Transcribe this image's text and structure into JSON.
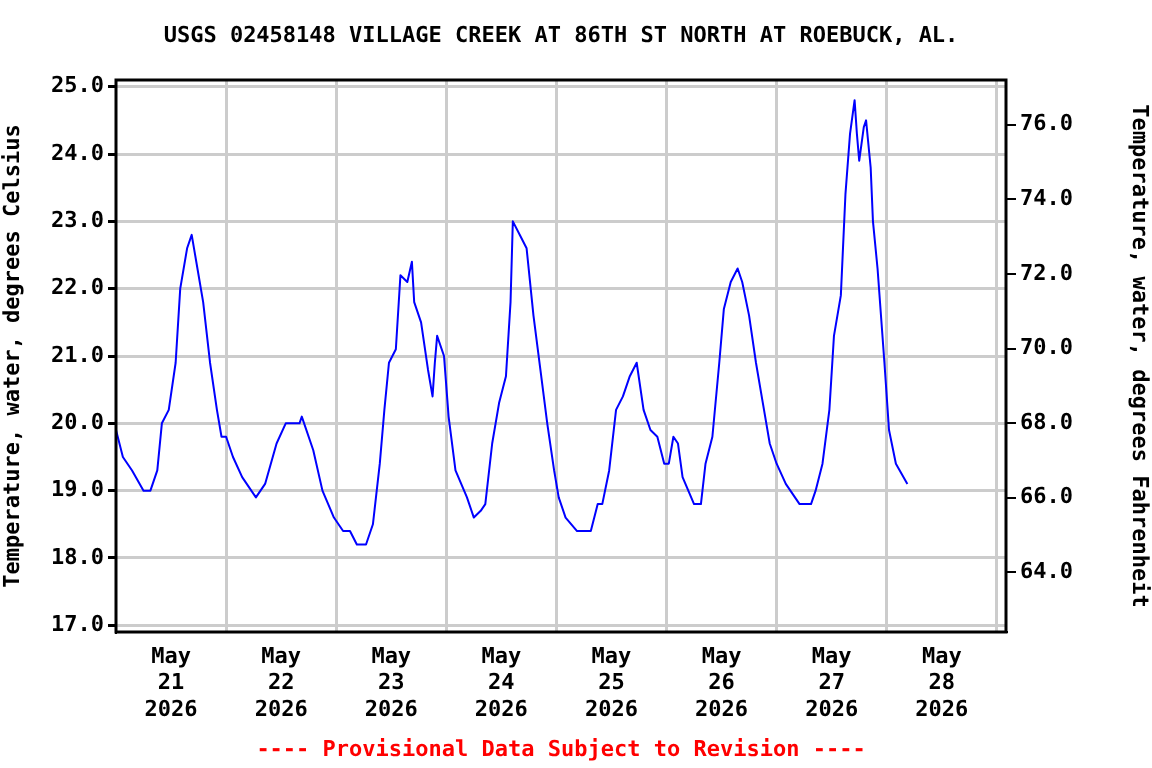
{
  "chart_data": {
    "type": "line",
    "title": "USGS 02458148 VILLAGE CREEK AT 86TH ST NORTH AT ROEBUCK, AL.",
    "ylabel": "Temperature, water, degrees Celsius",
    "y2label": "Temperature, water, degrees Fahrenheit",
    "annotations": [
      "---- Provisional Data Subject to Revision ----"
    ],
    "x": [
      "2026-05-21T00:00",
      "2026-05-21T01:30",
      "2026-05-21T03:30",
      "2026-05-21T06:00",
      "2026-05-21T07:30",
      "2026-05-21T09:00",
      "2026-05-21T10:00",
      "2026-05-21T11:30",
      "2026-05-21T13:00",
      "2026-05-21T14:00",
      "2026-05-21T15:30",
      "2026-05-21T16:30",
      "2026-05-21T17:30",
      "2026-05-21T19:00",
      "2026-05-21T20:30",
      "2026-05-21T22:00",
      "2026-05-21T23:00",
      "2026-05-22T00:00",
      "2026-05-22T01:30",
      "2026-05-22T03:30",
      "2026-05-22T06:30",
      "2026-05-22T08:30",
      "2026-05-22T11:00",
      "2026-05-22T13:00",
      "2026-05-22T16:00",
      "2026-05-22T16:30",
      "2026-05-22T19:00",
      "2026-05-22T21:00",
      "2026-05-22T23:30",
      "2026-05-23T01:30",
      "2026-05-23T03:00",
      "2026-05-23T04:30",
      "2026-05-23T06:30",
      "2026-05-23T08:00",
      "2026-05-23T09:30",
      "2026-05-23T10:30",
      "2026-05-23T11:30",
      "2026-05-23T13:00",
      "2026-05-23T14:00",
      "2026-05-23T15:30",
      "2026-05-23T16:30",
      "2026-05-23T17:00",
      "2026-05-23T18:30",
      "2026-05-23T20:00",
      "2026-05-23T21:00",
      "2026-05-23T21:30",
      "2026-05-23T22:00",
      "2026-05-23T23:30",
      "2026-05-24T00:30",
      "2026-05-24T02:00",
      "2026-05-24T04:30",
      "2026-05-24T06:00",
      "2026-05-24T07:30",
      "2026-05-24T08:30",
      "2026-05-24T10:00",
      "2026-05-24T11:30",
      "2026-05-24T13:00",
      "2026-05-24T14:00",
      "2026-05-24T14:30",
      "2026-05-24T16:00",
      "2026-05-24T17:30",
      "2026-05-24T19:00",
      "2026-05-24T20:30",
      "2026-05-24T22:00",
      "2026-05-24T23:30",
      "2026-05-25T00:30",
      "2026-05-25T02:00",
      "2026-05-25T04:30",
      "2026-05-25T07:30",
      "2026-05-25T09:00",
      "2026-05-25T10:00",
      "2026-05-25T11:30",
      "2026-05-25T13:00",
      "2026-05-25T14:30",
      "2026-05-25T16:00",
      "2026-05-25T17:30",
      "2026-05-25T19:00",
      "2026-05-25T20:30",
      "2026-05-25T22:00",
      "2026-05-25T23:30",
      "2026-05-26T00:30",
      "2026-05-26T01:30",
      "2026-05-26T02:30",
      "2026-05-26T03:30",
      "2026-05-26T06:00",
      "2026-05-26T07:30",
      "2026-05-26T08:30",
      "2026-05-26T10:00",
      "2026-05-26T11:30",
      "2026-05-26T12:30",
      "2026-05-26T14:00",
      "2026-05-26T15:30",
      "2026-05-26T16:30",
      "2026-05-26T18:00",
      "2026-05-26T19:30",
      "2026-05-26T21:00",
      "2026-05-26T22:30",
      "2026-05-27T00:00",
      "2026-05-27T02:00",
      "2026-05-27T05:00",
      "2026-05-27T07:30",
      "2026-05-27T08:30",
      "2026-05-27T10:00",
      "2026-05-27T11:30",
      "2026-05-27T12:30",
      "2026-05-27T14:00",
      "2026-05-27T15:00",
      "2026-05-27T16:00",
      "2026-05-27T17:00",
      "2026-05-27T17:30",
      "2026-05-27T18:00",
      "2026-05-27T19:00",
      "2026-05-27T19:30",
      "2026-05-27T20:30",
      "2026-05-27T21:00",
      "2026-05-27T22:00",
      "2026-05-27T23:30",
      "2026-05-28T00:30",
      "2026-05-28T02:00",
      "2026-05-28T04:30"
    ],
    "series": [
      {
        "color": "#0000ff",
        "values": [
          19.9,
          19.5,
          19.3,
          19.0,
          19.0,
          19.3,
          20.0,
          20.2,
          20.9,
          22.0,
          22.6,
          22.8,
          22.4,
          21.8,
          20.9,
          20.2,
          19.8,
          19.8,
          19.5,
          19.2,
          18.9,
          19.1,
          19.7,
          20.0,
          20.0,
          20.1,
          19.6,
          19.0,
          18.6,
          18.4,
          18.4,
          18.2,
          18.2,
          18.5,
          19.4,
          20.2,
          20.9,
          21.1,
          22.2,
          22.1,
          22.4,
          21.8,
          21.5,
          20.8,
          20.4,
          20.9,
          21.3,
          21.0,
          20.1,
          19.3,
          18.9,
          18.6,
          18.7,
          18.8,
          19.7,
          20.3,
          20.7,
          21.8,
          23.0,
          22.8,
          22.6,
          21.6,
          20.8,
          20.0,
          19.3,
          18.9,
          18.6,
          18.4,
          18.4,
          18.8,
          18.8,
          19.3,
          20.2,
          20.4,
          20.7,
          20.9,
          20.2,
          19.9,
          19.8,
          19.4,
          19.4,
          19.8,
          19.7,
          19.2,
          18.8,
          18.8,
          19.4,
          19.8,
          20.9,
          21.7,
          22.1,
          22.3,
          22.1,
          21.6,
          20.9,
          20.3,
          19.7,
          19.4,
          19.1,
          18.8,
          18.8,
          19.0,
          19.4,
          20.2,
          21.3,
          21.9,
          23.4,
          24.3,
          24.8,
          24.3,
          23.9,
          24.4,
          24.5,
          23.8,
          23.0,
          22.3,
          20.9,
          19.9,
          19.4,
          19.1
        ]
      }
    ],
    "xlim": [
      "2026-05-21T00:00",
      "2026-05-29T02:00"
    ],
    "xticks": [
      {
        "value": "2026-05-21T12:00",
        "label": "May\n21\n2026"
      },
      {
        "value": "2026-05-22T00:00",
        "label": null
      },
      {
        "value": "2026-05-22T12:00",
        "label": "May\n22\n2026"
      },
      {
        "value": "2026-05-23T00:00",
        "label": null
      },
      {
        "value": "2026-05-23T12:00",
        "label": "May\n23\n2026"
      },
      {
        "value": "2026-05-24T00:00",
        "label": null
      },
      {
        "value": "2026-05-24T12:00",
        "label": "May\n24\n2026"
      },
      {
        "value": "2026-05-25T00:00",
        "label": null
      },
      {
        "value": "2026-05-25T12:00",
        "label": "May\n25\n2026"
      },
      {
        "value": "2026-05-26T00:00",
        "label": null
      },
      {
        "value": "2026-05-26T12:00",
        "label": "May\n26\n2026"
      },
      {
        "value": "2026-05-27T00:00",
        "label": null
      },
      {
        "value": "2026-05-27T12:00",
        "label": "May\n27\n2026"
      },
      {
        "value": "2026-05-28T00:00",
        "label": null
      },
      {
        "value": "2026-05-28T12:00",
        "label": "May\n28\n2026"
      },
      {
        "value": "2026-05-29T00:00",
        "label": null
      }
    ],
    "ylim": [
      16.9,
      25.1
    ],
    "yticks": [
      {
        "value": 17,
        "label": "17.0"
      },
      {
        "value": 18,
        "label": "18.0"
      },
      {
        "value": 19,
        "label": "19.0"
      },
      {
        "value": 20,
        "label": "20.0"
      },
      {
        "value": 21,
        "label": "21.0"
      },
      {
        "value": 22,
        "label": "22.0"
      },
      {
        "value": 23,
        "label": "23.0"
      },
      {
        "value": 24,
        "label": "24.0"
      },
      {
        "value": 25,
        "label": "25.0"
      }
    ],
    "y2lim": [
      62.4,
      77.2
    ],
    "y2ticks": [
      {
        "value": 64,
        "label": "64.0"
      },
      {
        "value": 66,
        "label": "66.0"
      },
      {
        "value": 68,
        "label": "68.0"
      },
      {
        "value": 70,
        "label": "70.0"
      },
      {
        "value": 72,
        "label": "72.0"
      },
      {
        "value": 74,
        "label": "74.0"
      },
      {
        "value": 76,
        "label": "76.0"
      }
    ],
    "grid": true,
    "legend": false,
    "marker": "none",
    "line_style": "solid"
  }
}
